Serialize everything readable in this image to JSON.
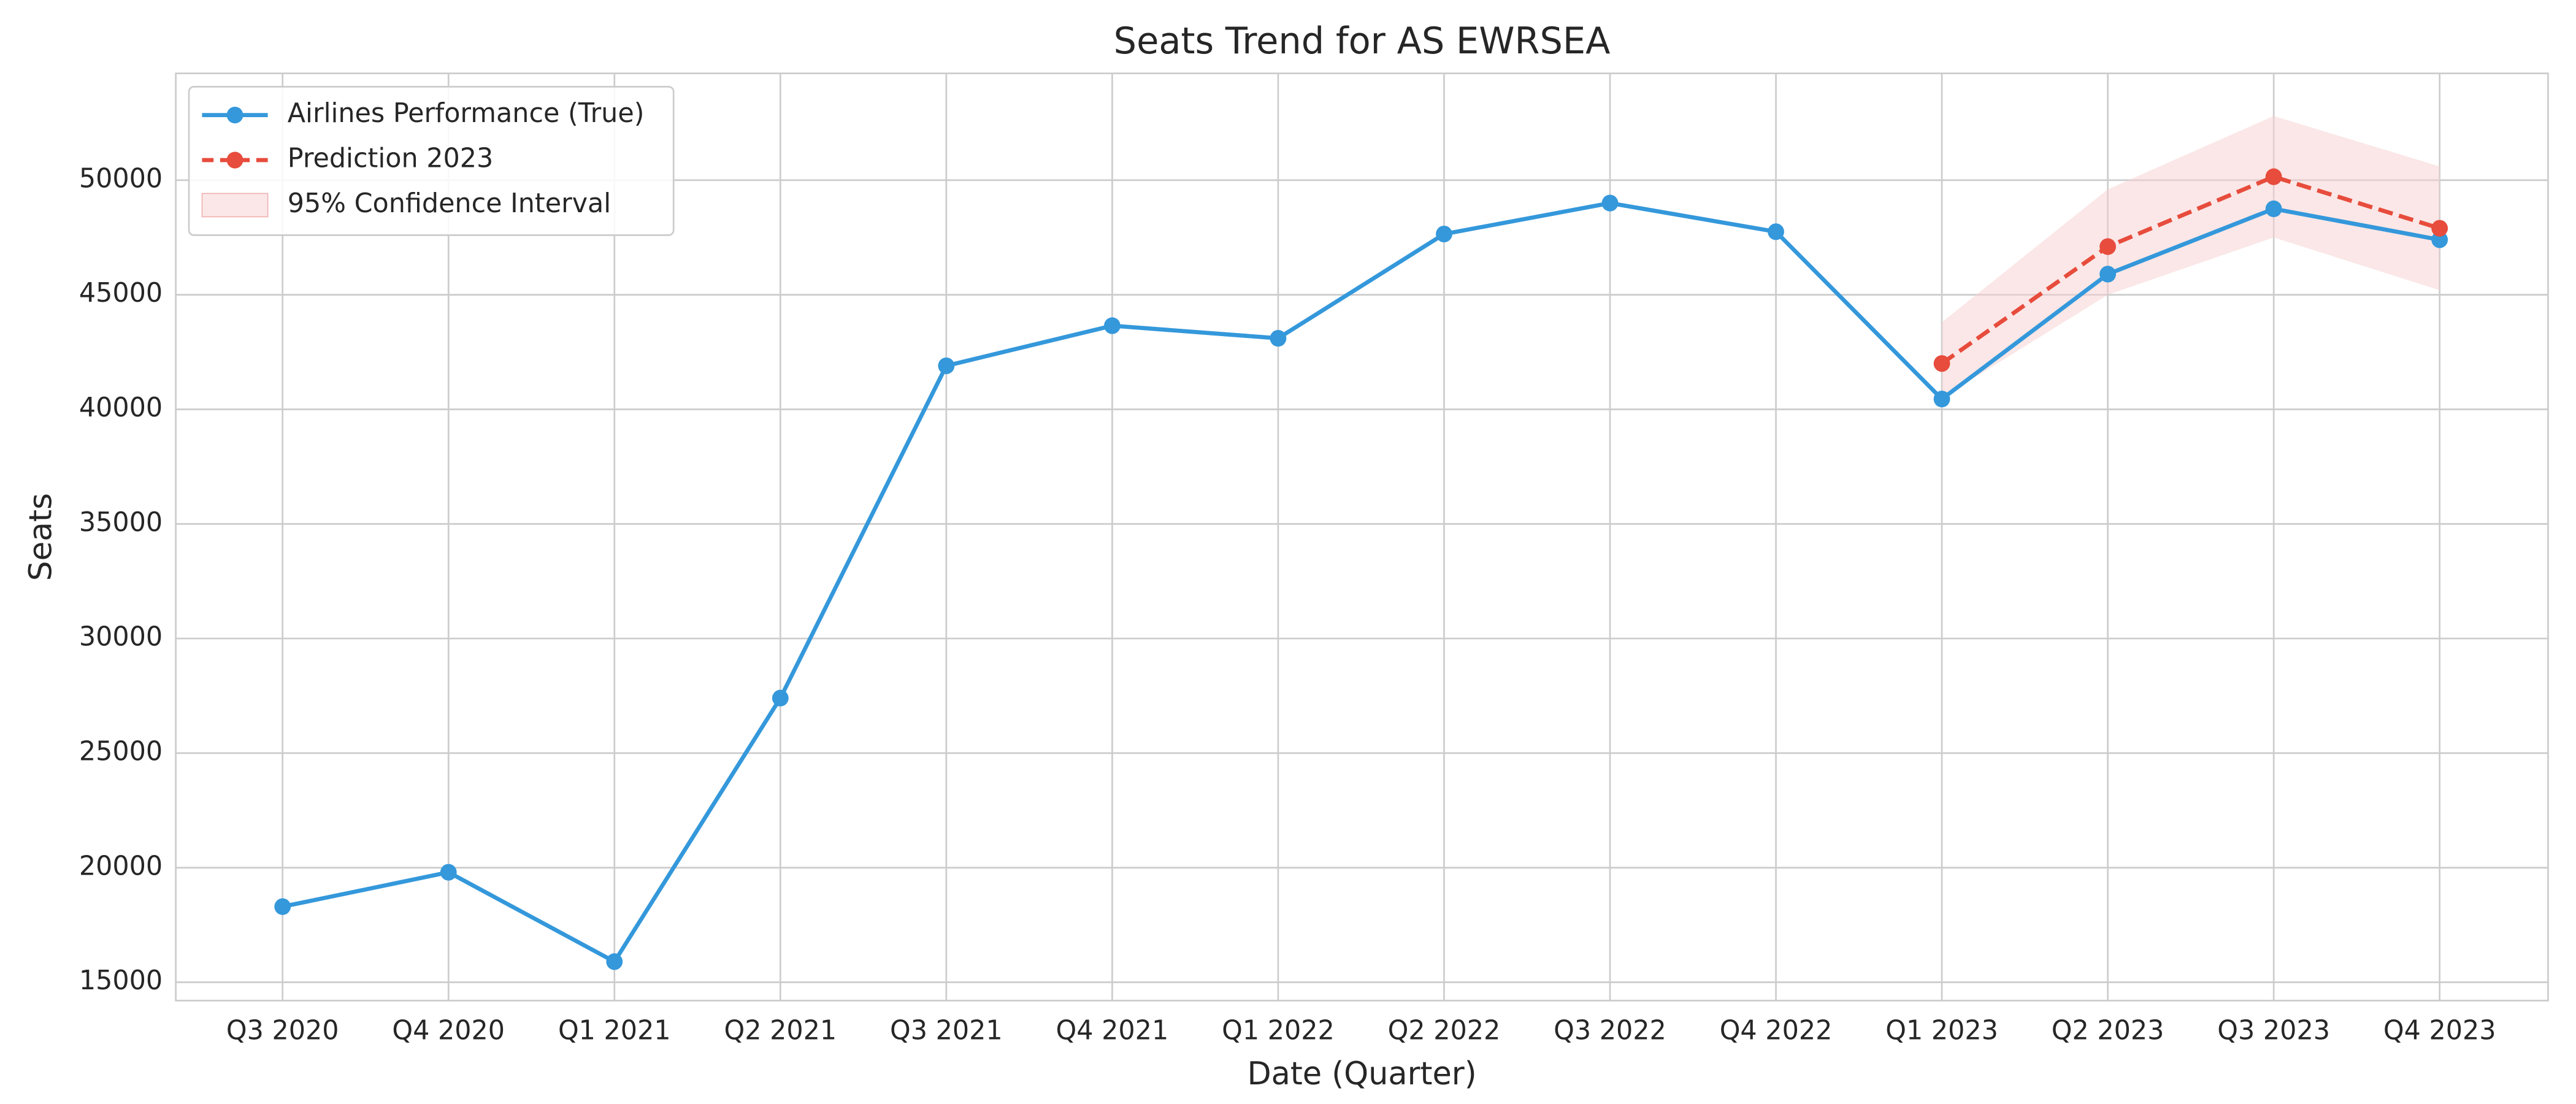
{
  "chart_data": {
    "type": "line",
    "title": "Seats Trend for AS EWRSEA",
    "x_label": "Date (Quarter)",
    "y_label": "Seats",
    "categories": [
      "Q3 2020",
      "Q4 2020",
      "Q1 2021",
      "Q2 2021",
      "Q3 2021",
      "Q4 2021",
      "Q1 2022",
      "Q2 2022",
      "Q3 2022",
      "Q4 2022",
      "Q1 2023",
      "Q2 2023",
      "Q3 2023",
      "Q4 2023"
    ],
    "series": [
      {
        "name": "Airlines Performance (True)",
        "color": "#3498db",
        "dash": "solid",
        "values": [
          18300,
          19800,
          15900,
          27400,
          41900,
          43650,
          43100,
          47650,
          49000,
          47750,
          40450,
          45900,
          48750,
          47400
        ]
      },
      {
        "name": "Prediction 2023",
        "color": "#e74c3c",
        "dash": "dashed",
        "values": [
          null,
          null,
          null,
          null,
          null,
          null,
          null,
          null,
          null,
          null,
          42000,
          47100,
          50150,
          47900
        ]
      }
    ],
    "confidence_interval": {
      "name": "95% Confidence Interval",
      "color": "#f8d0d0",
      "lower": [
        null,
        null,
        null,
        null,
        null,
        null,
        null,
        null,
        null,
        null,
        40500,
        45000,
        47500,
        45200
      ],
      "upper": [
        null,
        null,
        null,
        null,
        null,
        null,
        null,
        null,
        null,
        null,
        43800,
        49600,
        52800,
        50600
      ]
    },
    "ylim": [
      14200,
      54660
    ],
    "yticks": [
      15000,
      20000,
      25000,
      30000,
      35000,
      40000,
      45000,
      50000
    ],
    "grid": true,
    "legend": "upper left"
  }
}
